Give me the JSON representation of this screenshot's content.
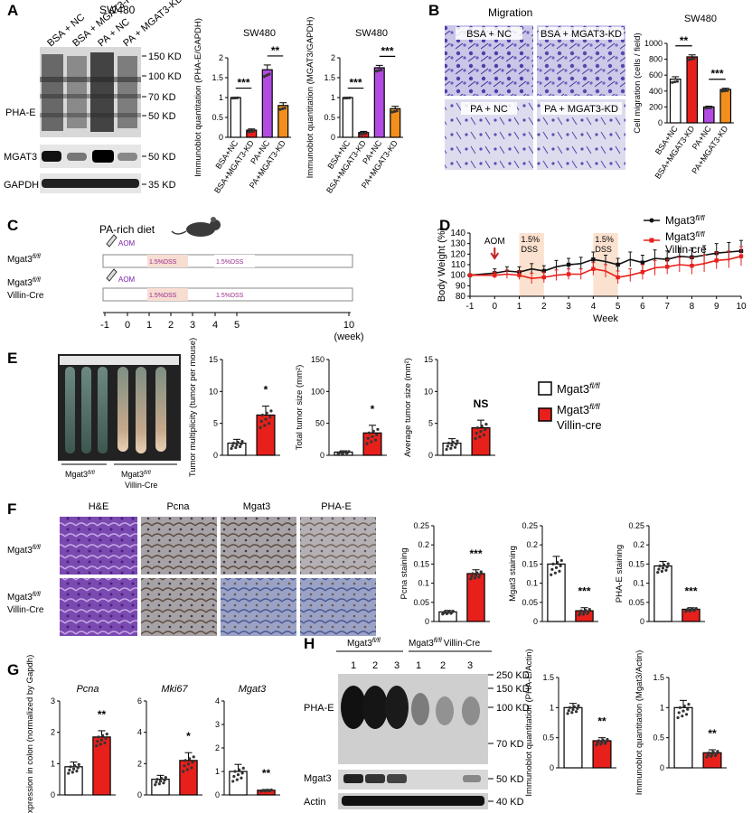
{
  "panels": {
    "A": {
      "letter": "A",
      "cell_line": "SW480",
      "lanes": [
        "BSA + NC",
        "BSA + MGAT3-KD",
        "PA + NC",
        "PA + MGAT3-KD"
      ],
      "blot_labels": [
        "PHA-E",
        "MGAT3",
        "GAPDH"
      ],
      "markers": [
        "150 KD",
        "100 KD",
        "70 KD",
        "50 KD",
        "50 KD",
        "35 KD"
      ]
    },
    "B": {
      "letter": "B",
      "title": "Migration",
      "images": [
        "BSA + NC",
        "BSA + MGAT3-KD",
        "PA + NC",
        "PA + MGAT3-KD"
      ]
    },
    "C": {
      "letter": "C",
      "diet": "PA-rich diet",
      "aom": "AOM",
      "dss": "1.5%DSS",
      "rows": [
        {
          "label": "Mgat3",
          "sup": "fl/fl",
          "label2": ""
        },
        {
          "label": "Mgat3",
          "sup": "fl/fl",
          "label2": "Villin-Cre"
        }
      ],
      "ticks": [
        "-1",
        "0",
        "1",
        "2",
        "3",
        "4",
        "5",
        "10"
      ],
      "unit": "(week)"
    },
    "E": {
      "letter": "E",
      "group_labels": [
        {
          "label": "Mgat3",
          "sup": "fl/fl",
          "label2": ""
        },
        {
          "label": "Mgat3",
          "sup": "fl/fl",
          "label2": "Villin-Cre"
        }
      ]
    },
    "F": {
      "letter": "F",
      "stains": [
        "H&E",
        "Pcna",
        "Mgat3",
        "PHA-E"
      ],
      "rows": [
        {
          "label": "Mgat3",
          "sup": "fl/fl",
          "label2": ""
        },
        {
          "label": "Mgat3",
          "sup": "fl/fl",
          "label2": "Villin-Cre"
        }
      ]
    },
    "G": {
      "letter": "G"
    },
    "H": {
      "letter": "H",
      "groups": [
        {
          "label": "Mgat3",
          "sup": "fl/fl",
          "label2": ""
        },
        {
          "label": "Mgat3",
          "sup": "fl/fl",
          "label2": "Villin-Cre"
        }
      ],
      "lanes": [
        "1",
        "2",
        "3",
        "1",
        "2",
        "3"
      ],
      "blot_labels": [
        "PHA-E",
        "Mgat3",
        "Actin"
      ],
      "markers": [
        "250 KD",
        "150 KD",
        "100 KD",
        "70 KD",
        "50 KD",
        "40 KD"
      ]
    },
    "legend": {
      "entries": [
        {
          "label": "Mgat3",
          "sup": "fl/fl",
          "label2": "",
          "color": "#ffffff"
        },
        {
          "label": "Mgat3",
          "sup": "fl/fl",
          "label2": "Villin-cre",
          "color": "#e8201c"
        }
      ]
    }
  },
  "colors": {
    "white": "#ffffff",
    "red": "#e8201c",
    "purple": "#b24be0",
    "orange": "#f28f1c",
    "black": "#111111",
    "stain_he": "#6d3aa0",
    "stain_ihc": "#8c7a6a",
    "stain_blue": "#8090c0"
  },
  "chart_data": [
    {
      "id": "A1",
      "type": "bar",
      "title": "SW480",
      "ylabel": "Immunoblot quantitation (PHA-E/GAPDH)",
      "categories": [
        "BSA+NC",
        "BSA+MGAT3-KD",
        "PA+NC",
        "PA+MGAT3-KD"
      ],
      "values": [
        1.0,
        0.18,
        1.7,
        0.8
      ],
      "errors": [
        0.01,
        0.03,
        0.12,
        0.07
      ],
      "colors": [
        "#ffffff",
        "#e8201c",
        "#b24be0",
        "#f28f1c"
      ],
      "yticks": [
        0,
        0.5,
        1.0,
        1.5,
        2.0
      ],
      "ylim": [
        0,
        2.0
      ],
      "sig": [
        {
          "from": 0,
          "to": 1,
          "text": "***"
        },
        {
          "from": 2,
          "to": 3,
          "text": "**"
        }
      ]
    },
    {
      "id": "A2",
      "type": "bar",
      "title": "SW480",
      "ylabel": "Immunoblot quantitation (MGAT3/GAPDH)",
      "categories": [
        "BSA+NC",
        "BSA+MGAT3-KD",
        "PA+NC",
        "PA+MGAT3-KD"
      ],
      "values": [
        1.0,
        0.12,
        1.75,
        0.72
      ],
      "errors": [
        0.01,
        0.03,
        0.06,
        0.06
      ],
      "colors": [
        "#ffffff",
        "#e8201c",
        "#b24be0",
        "#f28f1c"
      ],
      "yticks": [
        0.0,
        0.5,
        1.0,
        1.5,
        2.0
      ],
      "ylim": [
        0,
        2.0
      ],
      "sig": [
        {
          "from": 0,
          "to": 1,
          "text": "***"
        },
        {
          "from": 2,
          "to": 3,
          "text": "***"
        }
      ]
    },
    {
      "id": "B",
      "type": "bar",
      "title": "SW480",
      "ylabel": "Cell migration (cells / field)",
      "categories": [
        "BSA+NC",
        "BSA+MGAT3-KD",
        "PA+NC",
        "PA+MGAT3-KD"
      ],
      "values": [
        550,
        830,
        200,
        420
      ],
      "errors": [
        30,
        25,
        10,
        15
      ],
      "colors": [
        "#ffffff",
        "#e8201c",
        "#b24be0",
        "#f28f1c"
      ],
      "yticks": [
        0,
        200,
        400,
        600,
        800,
        1000
      ],
      "ylim": [
        0,
        1000
      ],
      "sig": [
        {
          "from": 0,
          "to": 1,
          "text": "**"
        },
        {
          "from": 2,
          "to": 3,
          "text": "***"
        }
      ]
    },
    {
      "id": "D",
      "type": "line",
      "xlabel": "Week",
      "ylabel": "Body Weight (%)",
      "x": [
        -1,
        0,
        0.5,
        1,
        1.5,
        2,
        2.5,
        3,
        3.5,
        4,
        4.5,
        5,
        5.5,
        6,
        6.5,
        7,
        7.5,
        8,
        8.5,
        9,
        9.5,
        10
      ],
      "series": [
        {
          "name": "Mgat3 fl/fl",
          "color": "#111111",
          "values": [
            100,
            102,
            104,
            103,
            106,
            104,
            108,
            110,
            111,
            115,
            113,
            110,
            115,
            112,
            116,
            115,
            118,
            117,
            119,
            121,
            122,
            123
          ],
          "errors": [
            0,
            4,
            4,
            5,
            5,
            5,
            6,
            6,
            6,
            7,
            6,
            6,
            7,
            7,
            8,
            8,
            8,
            9,
            9,
            9,
            9,
            10
          ]
        },
        {
          "name": "Mgat3 fl/fl Villin-cre",
          "color": "#e8201c",
          "values": [
            100,
            100,
            101,
            100,
            97,
            98,
            100,
            101,
            101,
            106,
            104,
            98,
            100,
            103,
            107,
            108,
            110,
            109,
            111,
            114,
            115,
            118
          ],
          "errors": [
            0,
            3,
            4,
            4,
            5,
            5,
            5,
            5,
            5,
            6,
            6,
            6,
            6,
            7,
            7,
            7,
            7,
            8,
            8,
            8,
            8,
            9
          ]
        }
      ],
      "xticks": [
        -1,
        0,
        1,
        2,
        3,
        4,
        5,
        6,
        7,
        8,
        9,
        10
      ],
      "yticks": [
        80,
        90,
        100,
        110,
        120,
        130,
        140
      ],
      "ylim": [
        80,
        140
      ],
      "xlim": [
        -1,
        10
      ],
      "dss": [
        [
          1,
          2
        ],
        [
          4,
          5
        ]
      ],
      "dss_label": [
        "1.5%",
        "DSS"
      ],
      "aom": "AOM"
    },
    {
      "id": "E1",
      "type": "bar",
      "ylabel": "Tumor multiplicity (tumor per mouse)",
      "categories": [
        "Mgat3 fl/fl",
        "Mgat3 fl/fl Villin-cre"
      ],
      "values": [
        1.9,
        6.3
      ],
      "errors": [
        0.6,
        1.4
      ],
      "colors": [
        "#ffffff",
        "#e8201c"
      ],
      "yticks": [
        0,
        5,
        10,
        15
      ],
      "ylim": [
        0,
        15
      ],
      "sig": [
        {
          "group": 1,
          "text": "*"
        }
      ]
    },
    {
      "id": "E2",
      "type": "bar",
      "ylabel": "Total tumor size (mm²)",
      "categories": [
        "Mgat3 fl/fl",
        "Mgat3 fl/fl Villin-cre"
      ],
      "values": [
        5,
        35
      ],
      "errors": [
        2,
        12
      ],
      "colors": [
        "#ffffff",
        "#e8201c"
      ],
      "yticks": [
        0,
        50,
        100,
        150
      ],
      "ylim": [
        0,
        150
      ],
      "sig": [
        {
          "group": 1,
          "text": "*"
        }
      ]
    },
    {
      "id": "E3",
      "type": "bar",
      "ylabel": "Average tumor size (mm²)",
      "categories": [
        "Mgat3 fl/fl",
        "Mgat3 fl/fl Villin-cre"
      ],
      "values": [
        1.9,
        4.3
      ],
      "errors": [
        0.7,
        1.2
      ],
      "colors": [
        "#ffffff",
        "#e8201c"
      ],
      "yticks": [
        0,
        5,
        10,
        15
      ],
      "ylim": [
        0,
        15
      ],
      "sig": [
        {
          "group": 1,
          "text": "NS"
        }
      ]
    },
    {
      "id": "F1",
      "type": "bar",
      "ylabel": "Pcna staining",
      "categories": [
        "Mgat3 fl/fl",
        "Mgat3 fl/fl Villin-cre"
      ],
      "values": [
        0.025,
        0.125
      ],
      "errors": [
        0.004,
        0.01
      ],
      "colors": [
        "#ffffff",
        "#e8201c"
      ],
      "yticks": [
        0.0,
        0.05,
        0.1,
        0.15,
        0.2,
        0.25
      ],
      "ylim": [
        0,
        0.25
      ],
      "sig": [
        {
          "group": 1,
          "text": "***"
        }
      ]
    },
    {
      "id": "F2",
      "type": "bar",
      "ylabel": "Mgat3 staining",
      "categories": [
        "Mgat3 fl/fl",
        "Mgat3 fl/fl Villin-cre"
      ],
      "values": [
        0.15,
        0.028
      ],
      "errors": [
        0.02,
        0.008
      ],
      "colors": [
        "#ffffff",
        "#e8201c"
      ],
      "yticks": [
        0.0,
        0.05,
        0.1,
        0.15,
        0.2,
        0.25
      ],
      "ylim": [
        0,
        0.25
      ],
      "sig": [
        {
          "group": 1,
          "text": "***"
        }
      ]
    },
    {
      "id": "F3",
      "type": "bar",
      "ylabel": "PHA-E staining",
      "categories": [
        "Mgat3 fl/fl",
        "Mgat3 fl/fl Villin-cre"
      ],
      "values": [
        0.145,
        0.032
      ],
      "errors": [
        0.012,
        0.004
      ],
      "colors": [
        "#ffffff",
        "#e8201c"
      ],
      "yticks": [
        0.0,
        0.05,
        0.1,
        0.15,
        0.2,
        0.25
      ],
      "ylim": [
        0,
        0.25
      ],
      "sig": [
        {
          "group": 1,
          "text": "***"
        }
      ]
    },
    {
      "id": "G1",
      "type": "bar",
      "title": "Pcna",
      "ylabel": "Gene expression in colon (normalized by Gapdh)",
      "categories": [
        "Mgat3 fl/fl",
        "Mgat3 fl/fl Villin-cre"
      ],
      "values": [
        0.9,
        1.85
      ],
      "errors": [
        0.15,
        0.2
      ],
      "colors": [
        "#ffffff",
        "#e8201c"
      ],
      "yticks": [
        0,
        1,
        2,
        3
      ],
      "ylim": [
        0,
        3
      ],
      "sig": [
        {
          "group": 1,
          "text": "**"
        }
      ]
    },
    {
      "id": "G2",
      "type": "bar",
      "title": "Mki67",
      "categories": [
        "Mgat3 fl/fl",
        "Mgat3 fl/fl Villin-cre"
      ],
      "values": [
        1.0,
        2.2
      ],
      "errors": [
        0.25,
        0.5
      ],
      "colors": [
        "#ffffff",
        "#e8201c"
      ],
      "yticks": [
        0,
        2,
        4,
        6
      ],
      "ylim": [
        0,
        6
      ],
      "sig": [
        {
          "group": 1,
          "text": "*"
        }
      ]
    },
    {
      "id": "G3",
      "type": "bar",
      "title": "Mgat3",
      "categories": [
        "Mgat3 fl/fl",
        "Mgat3 fl/fl Villin-cre"
      ],
      "values": [
        1.0,
        0.2
      ],
      "errors": [
        0.3,
        0.03
      ],
      "colors": [
        "#ffffff",
        "#e8201c"
      ],
      "yticks": [
        0,
        1,
        2,
        3,
        4
      ],
      "ylim": [
        0,
        4
      ],
      "sig": [
        {
          "group": 1,
          "text": "**"
        }
      ]
    },
    {
      "id": "H1",
      "type": "bar",
      "ylabel": "Immunoblot quantitation (PHA-E/Actin)",
      "categories": [
        "Mgat3 fl/fl",
        "Mgat3 fl/fl Villin-cre"
      ],
      "values": [
        1.0,
        0.45
      ],
      "errors": [
        0.07,
        0.05
      ],
      "colors": [
        "#ffffff",
        "#e8201c"
      ],
      "yticks": [
        0.0,
        0.5,
        1.0,
        1.5
      ],
      "ylim": [
        0,
        1.5
      ],
      "sig": [
        {
          "group": 1,
          "text": "**"
        }
      ]
    },
    {
      "id": "H2",
      "type": "bar",
      "ylabel": "Immunoblot quantitation (Mgat3/Actin)",
      "categories": [
        "Mgat3 fl/fl",
        "Mgat3 fl/fl Villin-cre"
      ],
      "values": [
        1.0,
        0.25
      ],
      "errors": [
        0.12,
        0.05
      ],
      "colors": [
        "#ffffff",
        "#e8201c"
      ],
      "yticks": [
        0.0,
        0.5,
        1.0,
        1.5
      ],
      "ylim": [
        0,
        1.5
      ],
      "sig": [
        {
          "group": 1,
          "text": "**"
        }
      ]
    }
  ]
}
